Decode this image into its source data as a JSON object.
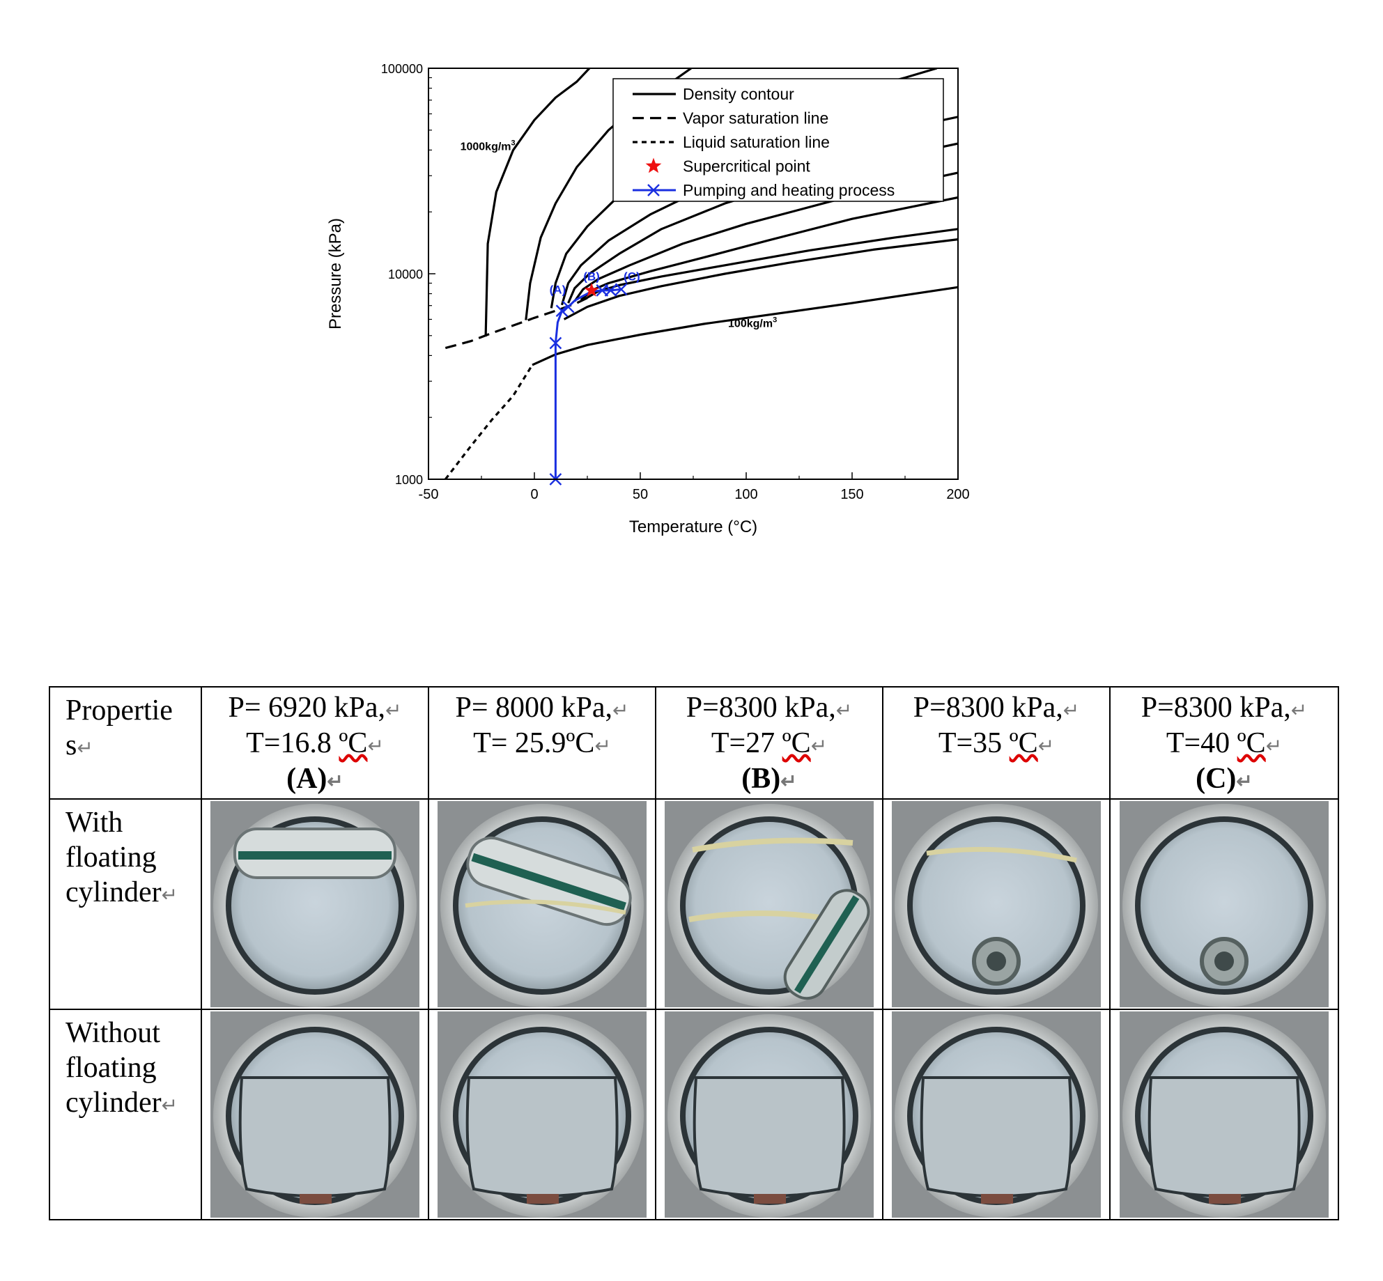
{
  "chart_data": {
    "type": "line",
    "xlabel": "Temperature (°C)",
    "ylabel": "Pressure (kPa)",
    "xlim": [
      -50,
      200
    ],
    "ylim": [
      1000,
      100000
    ],
    "yscale": "log",
    "x_ticks": [
      "-50",
      "0",
      "50",
      "100",
      "150",
      "200"
    ],
    "y_ticks": [
      "1000",
      "10000",
      "100000"
    ],
    "legend_position": "top-right",
    "legend": [
      {
        "label": "Density contour",
        "style": "solid"
      },
      {
        "label": "Vapor saturation line",
        "style": "dashed"
      },
      {
        "label": "Liquid saturation line",
        "style": "dotted"
      },
      {
        "label": "Supercritical point",
        "style": "star"
      },
      {
        "label": "Pumping and heating process",
        "style": "blue-x"
      }
    ],
    "annotations": [
      {
        "text": "1000kg/m",
        "sup": "3",
        "x": -22,
        "y": 40000
      },
      {
        "text": "100kg/m",
        "sup": "3",
        "x": 103,
        "y": 5500
      },
      {
        "text": "(A)",
        "x": 11,
        "y": 8000
      },
      {
        "text": "(B)",
        "x": 27,
        "y": 9300
      },
      {
        "text": "(C)",
        "x": 46,
        "y": 9300
      }
    ],
    "series": [
      {
        "style": "dashed",
        "color": "#000000",
        "points": [
          [
            -42,
            4350
          ],
          [
            -30,
            4700
          ],
          [
            -20,
            5150
          ],
          [
            -10,
            5600
          ],
          [
            0,
            6100
          ],
          [
            10,
            6600
          ],
          [
            20,
            7200
          ],
          [
            27,
            7800
          ]
        ]
      },
      {
        "style": "dotted",
        "color": "#000000",
        "points": [
          [
            -42,
            1000
          ],
          [
            -30,
            1450
          ],
          [
            -20,
            1950
          ],
          [
            -10,
            2550
          ],
          [
            -1,
            3600
          ]
        ]
      },
      {
        "style": "solid",
        "color": "#000000",
        "points": [
          [
            -23,
            4950
          ],
          [
            -22,
            14000
          ],
          [
            -18,
            25000
          ],
          [
            -10,
            40000
          ],
          [
            0,
            56000
          ],
          [
            10,
            72000
          ],
          [
            20,
            86000
          ],
          [
            26,
            100000
          ]
        ]
      },
      {
        "style": "solid",
        "color": "#000000",
        "points": [
          [
            -4,
            5950
          ],
          [
            -2,
            9000
          ],
          [
            3,
            15000
          ],
          [
            10,
            22000
          ],
          [
            20,
            33000
          ],
          [
            35,
            50000
          ],
          [
            50,
            68000
          ],
          [
            65,
            86000
          ],
          [
            74,
            100000
          ]
        ]
      },
      {
        "style": "solid",
        "color": "#000000",
        "points": [
          [
            8,
            6800
          ],
          [
            10,
            9000
          ],
          [
            15,
            12500
          ],
          [
            25,
            17000
          ],
          [
            40,
            24000
          ],
          [
            60,
            33000
          ],
          [
            85,
            45000
          ],
          [
            110,
            57000
          ],
          [
            140,
            72000
          ],
          [
            175,
            90000
          ],
          [
            190,
            100000
          ]
        ]
      },
      {
        "style": "solid",
        "color": "#000000",
        "points": [
          [
            13,
            7050
          ],
          [
            16,
            9000
          ],
          [
            22,
            11000
          ],
          [
            35,
            14500
          ],
          [
            55,
            19500
          ],
          [
            80,
            26000
          ],
          [
            110,
            34000
          ],
          [
            150,
            45000
          ],
          [
            200,
            58000
          ]
        ]
      },
      {
        "style": "solid",
        "color": "#000000",
        "points": [
          [
            16,
            7200
          ],
          [
            19,
            8500
          ],
          [
            26,
            10000
          ],
          [
            40,
            12500
          ],
          [
            60,
            16500
          ],
          [
            90,
            22000
          ],
          [
            130,
            29500
          ],
          [
            170,
            37000
          ],
          [
            200,
            43000
          ]
        ]
      },
      {
        "style": "solid",
        "color": "#000000",
        "points": [
          [
            19,
            7350
          ],
          [
            23,
            8400
          ],
          [
            30,
            9400
          ],
          [
            45,
            11000
          ],
          [
            70,
            14000
          ],
          [
            100,
            17500
          ],
          [
            140,
            22500
          ],
          [
            180,
            28000
          ],
          [
            200,
            31000
          ]
        ]
      },
      {
        "style": "solid",
        "color": "#000000",
        "points": [
          [
            22,
            7450
          ],
          [
            27,
            8300
          ],
          [
            35,
            9000
          ],
          [
            55,
            10300
          ],
          [
            80,
            12000
          ],
          [
            110,
            14500
          ],
          [
            150,
            18500
          ],
          [
            200,
            23500
          ]
        ]
      },
      {
        "style": "solid",
        "color": "#000000",
        "points": [
          [
            24,
            7550
          ],
          [
            30,
            8200
          ],
          [
            40,
            8800
          ],
          [
            60,
            9700
          ],
          [
            90,
            11000
          ],
          [
            130,
            13000
          ],
          [
            170,
            15000
          ],
          [
            200,
            16500
          ]
        ]
      },
      {
        "style": "solid",
        "color": "#000000",
        "points": [
          [
            14,
            6000
          ],
          [
            25,
            6900
          ],
          [
            40,
            7800
          ],
          [
            60,
            8700
          ],
          [
            90,
            10000
          ],
          [
            120,
            11300
          ],
          [
            160,
            13100
          ],
          [
            200,
            14700
          ]
        ]
      },
      {
        "style": "solid",
        "color": "#000000",
        "points": [
          [
            -1,
            3600
          ],
          [
            10,
            4050
          ],
          [
            25,
            4500
          ],
          [
            50,
            5050
          ],
          [
            80,
            5700
          ],
          [
            110,
            6300
          ],
          [
            150,
            7200
          ],
          [
            200,
            8600
          ]
        ]
      },
      {
        "style": "solid-x",
        "color": "#1a2fe0",
        "points": [
          [
            10,
            1000
          ],
          [
            10,
            4600
          ],
          [
            11,
            5800
          ],
          [
            13,
            6600
          ],
          [
            16,
            6900
          ],
          [
            19,
            7400
          ],
          [
            23,
            7800
          ],
          [
            27,
            8200
          ],
          [
            32,
            8300
          ],
          [
            36,
            8300
          ],
          [
            41,
            8400
          ]
        ]
      }
    ],
    "process_markers": [
      [
        10,
        1000
      ],
      [
        10,
        4600
      ],
      [
        13,
        6600
      ],
      [
        16,
        6900
      ],
      [
        32,
        8300
      ],
      [
        36,
        8300
      ],
      [
        41,
        8400
      ]
    ],
    "supercritical_point": [
      27,
      8300
    ],
    "colors": {
      "process": "#1a2fe0",
      "star": "#ee1111"
    }
  },
  "table": {
    "corner_label": [
      "Propertie",
      "s"
    ],
    "columns": [
      {
        "line1": "P= 6920 kPa,",
        "line2a": "T=16.8 ",
        "unit": "ºC",
        "label": "(A)"
      },
      {
        "line1": "P= 8000 kPa,",
        "line2a": "T= 25.9",
        "unit": "ºC",
        "label": ""
      },
      {
        "line1": "P=8300 kPa,",
        "line2a": "T=27 ",
        "unit": "ºC",
        "label": "(B)"
      },
      {
        "line1": "P=8300 kPa,",
        "line2a": "T=35 ",
        "unit": "ºC",
        "label": ""
      },
      {
        "line1": "P=8300 kPa,",
        "line2a": "T=40 ",
        "unit": "ºC",
        "label": "(C)"
      }
    ],
    "row_with": [
      "With",
      "floating",
      "cylinder"
    ],
    "row_without": [
      "Without",
      "floating",
      "cylinder"
    ],
    "return_mark": "↵"
  }
}
